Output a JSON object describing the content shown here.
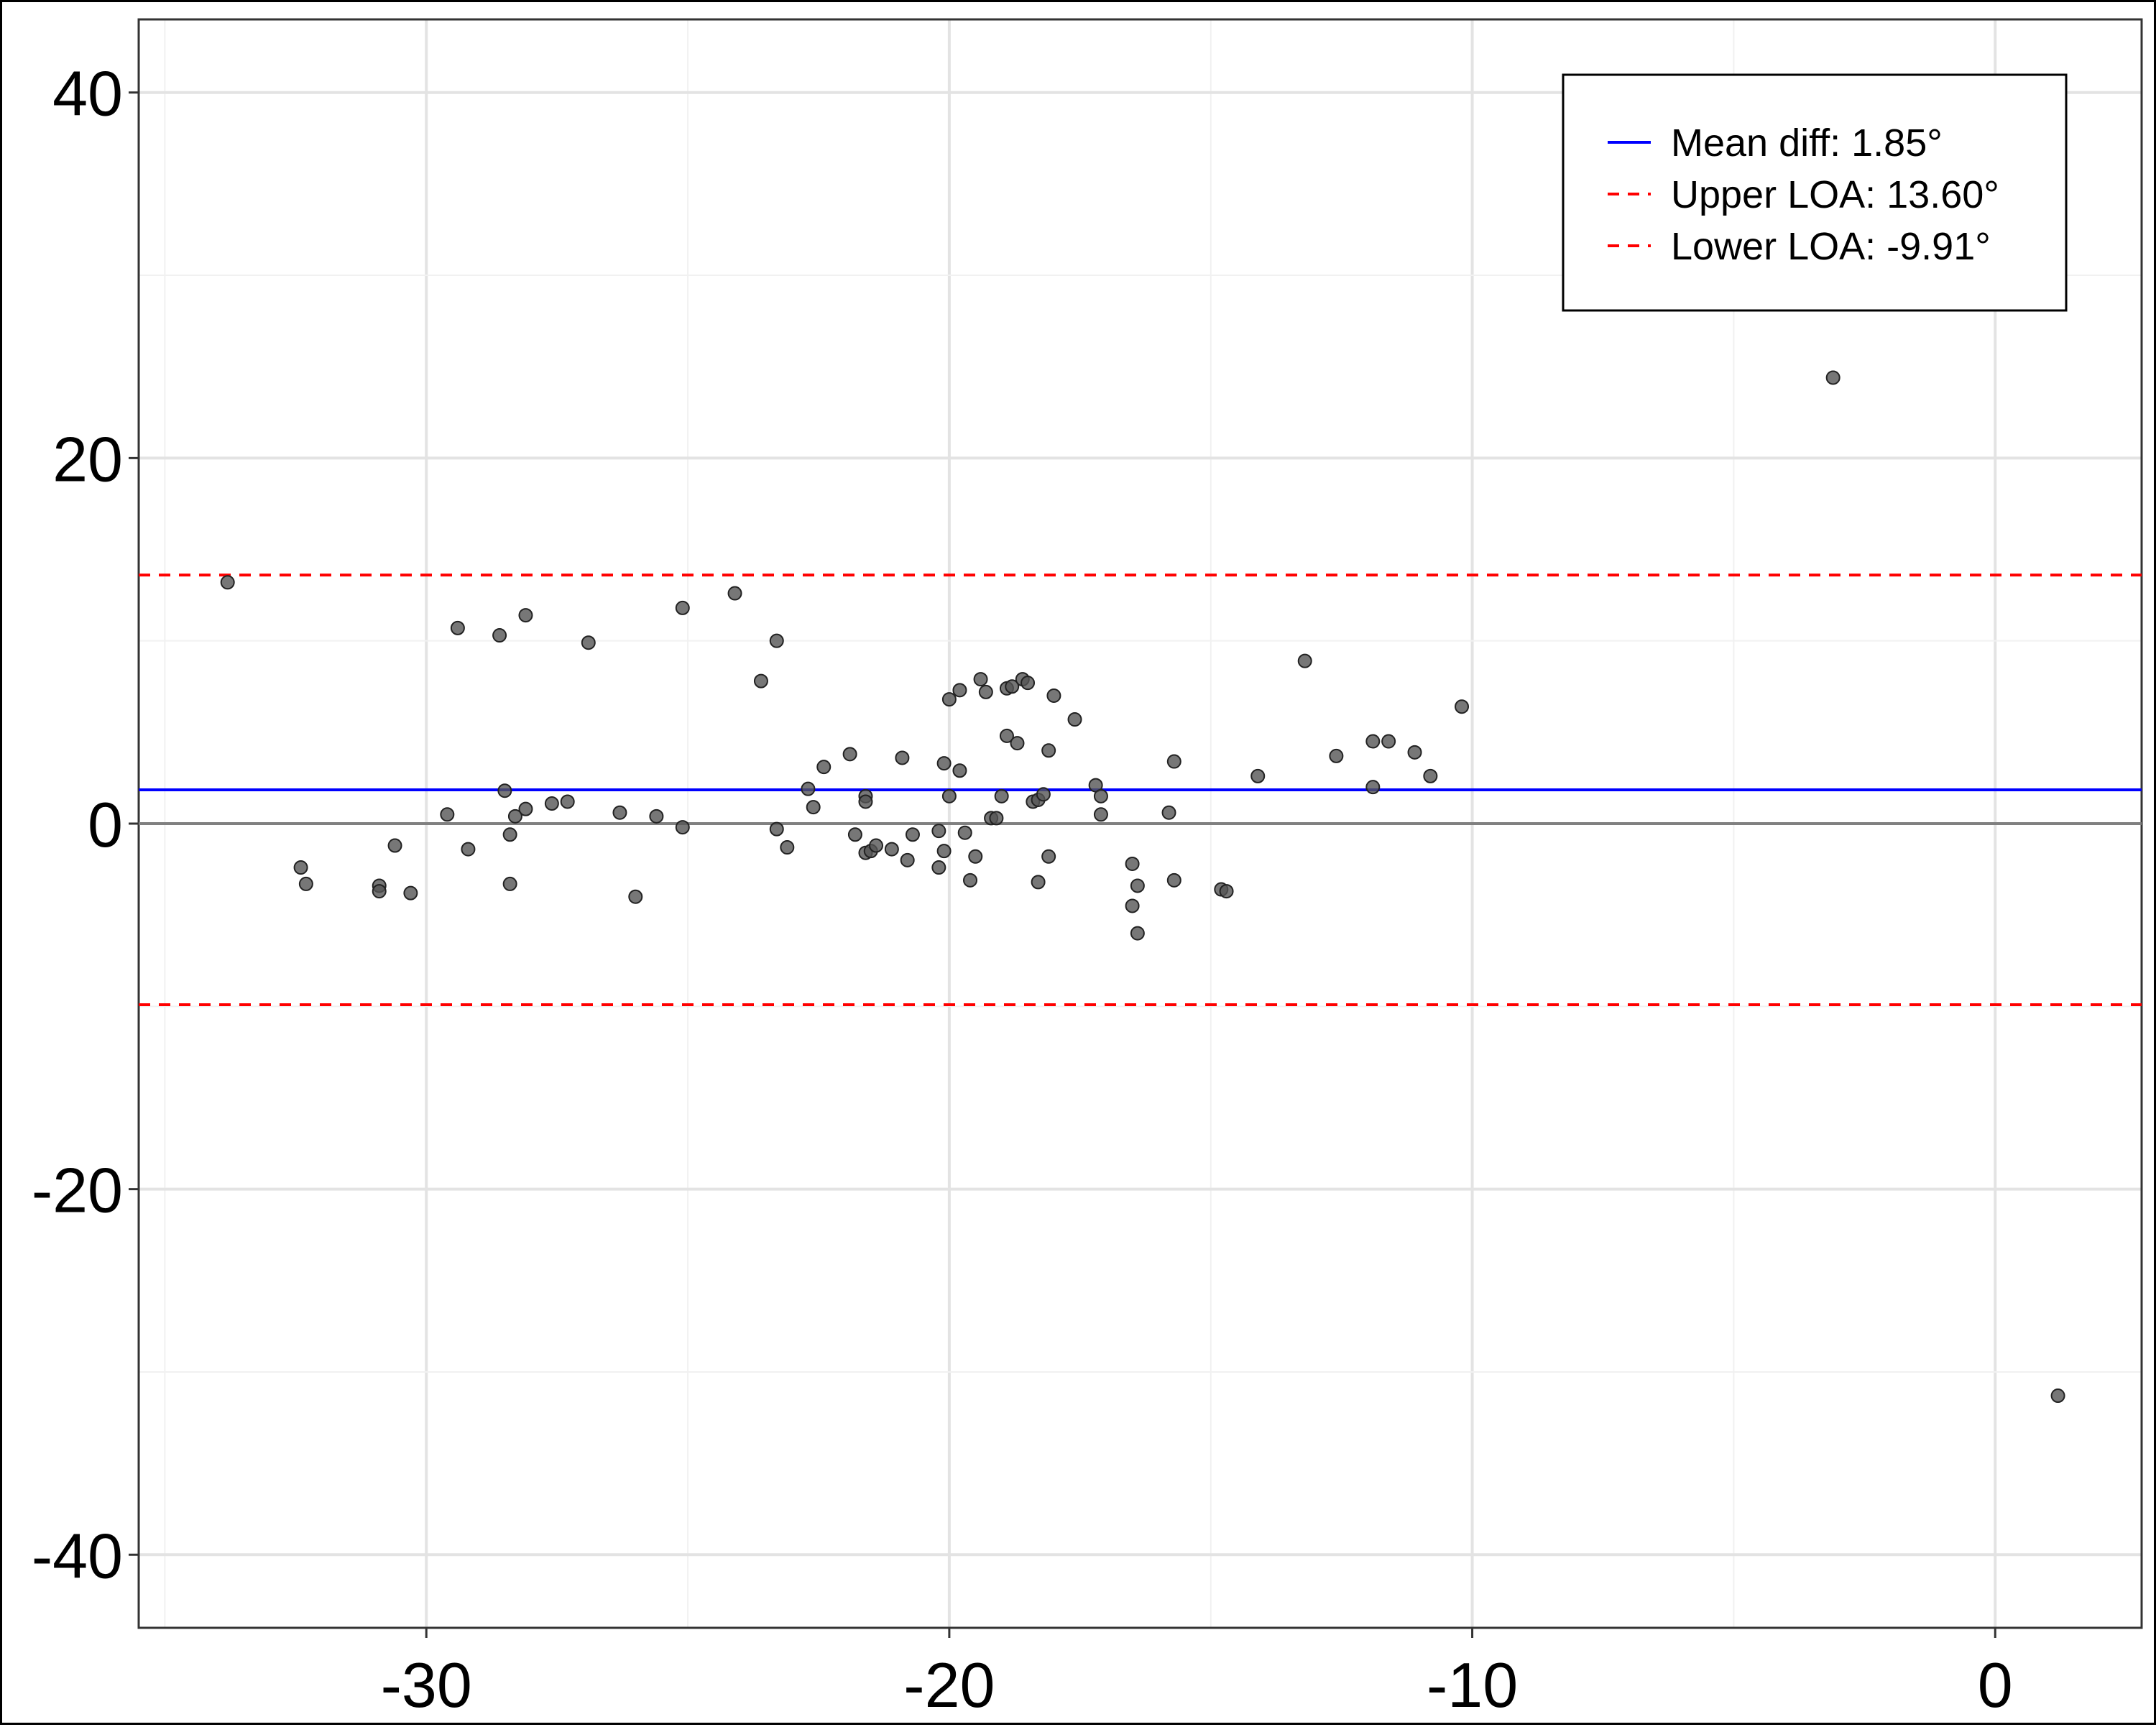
{
  "chart_data": {
    "type": "scatter",
    "title": "",
    "xlabel": "",
    "ylabel": "",
    "xlim": [
      -35.5,
      2.8
    ],
    "ylim": [
      -44,
      44
    ],
    "xticks": [
      -30,
      -20,
      -10,
      0
    ],
    "yticks": [
      40,
      20,
      0,
      -20,
      -40
    ],
    "x_tick_labels": [
      "-30",
      "-20",
      "-10",
      "0"
    ],
    "y_tick_labels": [
      "40",
      "20",
      "0",
      "-20",
      "-40"
    ],
    "grid": true,
    "legend_position": "top-right",
    "colors": {
      "points": "#555555",
      "mean_line": "#0000ff",
      "loa_line": "#ff0000",
      "zero_line": "#808080",
      "grid": "#e6e6e6"
    },
    "reference_lines": [
      {
        "name": "Mean diff: 1.85°",
        "y": 1.85,
        "style": "solid",
        "color": "#0000ff"
      },
      {
        "name": "Upper LOA: 13.60°",
        "y": 13.6,
        "style": "dashed",
        "color": "#ff0000"
      },
      {
        "name": "Lower LOA: -9.91°",
        "y": -9.91,
        "style": "dashed",
        "color": "#ff0000"
      }
    ],
    "points": [
      [
        -33.8,
        13.2
      ],
      [
        -32.4,
        -2.4
      ],
      [
        -32.3,
        -3.3
      ],
      [
        -30.9,
        -3.4
      ],
      [
        -30.9,
        -3.7
      ],
      [
        -30.6,
        -1.2
      ],
      [
        -30.3,
        -3.8
      ],
      [
        -29.6,
        0.5
      ],
      [
        -29.4,
        10.7
      ],
      [
        -29.2,
        -1.4
      ],
      [
        -28.6,
        10.3
      ],
      [
        -28.5,
        1.8
      ],
      [
        -28.4,
        -0.6
      ],
      [
        -28.4,
        -3.3
      ],
      [
        -28.3,
        0.4
      ],
      [
        -28.1,
        11.4
      ],
      [
        -28.1,
        0.8
      ],
      [
        -27.6,
        1.1
      ],
      [
        -27.3,
        1.2
      ],
      [
        -26.9,
        9.9
      ],
      [
        -26.3,
        0.6
      ],
      [
        -26.0,
        -4.0
      ],
      [
        -25.6,
        0.4
      ],
      [
        -25.1,
        11.8
      ],
      [
        -25.1,
        -0.2
      ],
      [
        -24.1,
        12.6
      ],
      [
        -23.6,
        7.8
      ],
      [
        -23.3,
        10.0
      ],
      [
        -23.3,
        -0.3
      ],
      [
        -23.1,
        -1.3
      ],
      [
        -22.7,
        1.9
      ],
      [
        -22.6,
        0.9
      ],
      [
        -22.4,
        3.1
      ],
      [
        -21.9,
        3.8
      ],
      [
        -21.8,
        -0.6
      ],
      [
        -21.6,
        1.5
      ],
      [
        -21.6,
        1.2
      ],
      [
        -21.6,
        -1.6
      ],
      [
        -21.5,
        -1.5
      ],
      [
        -21.4,
        -1.2
      ],
      [
        -21.1,
        -1.4
      ],
      [
        -20.9,
        3.6
      ],
      [
        -20.8,
        -2.0
      ],
      [
        -20.7,
        -0.6
      ],
      [
        -20.2,
        -0.4
      ],
      [
        -20.2,
        -2.4
      ],
      [
        -20.1,
        -1.5
      ],
      [
        -20.1,
        3.3
      ],
      [
        -20.0,
        6.8
      ],
      [
        -20.0,
        1.5
      ],
      [
        -19.8,
        7.3
      ],
      [
        -19.8,
        2.9
      ],
      [
        -19.7,
        -0.5
      ],
      [
        -19.6,
        -3.1
      ],
      [
        -19.5,
        -1.8
      ],
      [
        -19.4,
        7.9
      ],
      [
        -19.3,
        7.2
      ],
      [
        -19.2,
        0.3
      ],
      [
        -19.1,
        0.3
      ],
      [
        -19.0,
        1.5
      ],
      [
        -18.9,
        4.8
      ],
      [
        -18.9,
        7.4
      ],
      [
        -18.8,
        7.5
      ],
      [
        -18.7,
        4.4
      ],
      [
        -18.6,
        7.9
      ],
      [
        -18.5,
        7.7
      ],
      [
        -18.4,
        1.2
      ],
      [
        -18.3,
        -3.2
      ],
      [
        -18.3,
        1.3
      ],
      [
        -18.2,
        1.6
      ],
      [
        -18.1,
        4.0
      ],
      [
        -18.1,
        -1.8
      ],
      [
        -18.0,
        7.0
      ],
      [
        -17.6,
        5.7
      ],
      [
        -17.2,
        2.1
      ],
      [
        -17.1,
        1.5
      ],
      [
        -17.1,
        0.5
      ],
      [
        -16.5,
        -2.2
      ],
      [
        -16.5,
        -4.5
      ],
      [
        -16.4,
        -3.4
      ],
      [
        -16.4,
        -6.0
      ],
      [
        -15.8,
        0.6
      ],
      [
        -15.7,
        3.4
      ],
      [
        -15.7,
        -3.1
      ],
      [
        -14.8,
        -3.6
      ],
      [
        -14.7,
        -3.7
      ],
      [
        -14.1,
        2.6
      ],
      [
        -13.2,
        8.9
      ],
      [
        -12.6,
        3.7
      ],
      [
        -11.9,
        2.0
      ],
      [
        -11.9,
        4.5
      ],
      [
        -11.6,
        4.5
      ],
      [
        -11.1,
        3.9
      ],
      [
        -10.8,
        2.6
      ],
      [
        -10.2,
        6.4
      ],
      [
        -3.1,
        24.4
      ],
      [
        1.2,
        -31.3
      ]
    ]
  }
}
